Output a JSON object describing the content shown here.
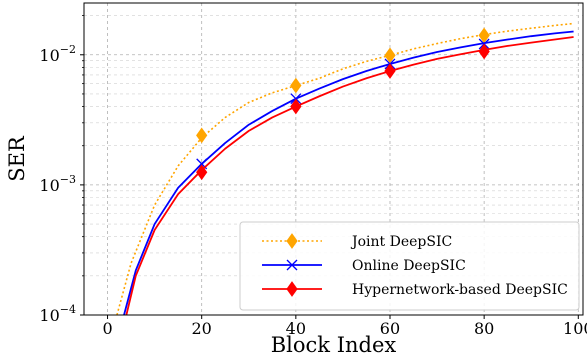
{
  "chart_data": {
    "type": "line",
    "title": "",
    "xlabel": "Block Index",
    "ylabel": "SER",
    "xlim": [
      -5,
      101
    ],
    "ylim": [
      0.0001,
      0.025
    ],
    "yscale": "log",
    "grid": true,
    "legend_position": "bottom-right",
    "x_ticks": [
      0,
      20,
      40,
      60,
      80,
      100
    ],
    "x_tick_labels": [
      "0",
      "20",
      "40",
      "60",
      "80",
      "100"
    ],
    "y_ticks": [
      0.0001,
      0.001,
      0.01
    ],
    "y_tick_labels": [
      {
        "base": "10",
        "exp": "−4"
      },
      {
        "base": "10",
        "exp": "−3"
      },
      {
        "base": "10",
        "exp": "−2"
      }
    ],
    "series": [
      {
        "name": "Joint DeepSIC",
        "color": "#FFA500",
        "line_style": "dotted",
        "marker": "diamond",
        "x": [
          2,
          5,
          10,
          15,
          20,
          25,
          30,
          35,
          40,
          45,
          50,
          55,
          60,
          65,
          70,
          75,
          80,
          85,
          90,
          95,
          99
        ],
        "y": [
          0.0001,
          0.00025,
          0.0007,
          0.0014,
          0.0023,
          0.0033,
          0.0043,
          0.0051,
          0.0058,
          0.0066,
          0.0078,
          0.0089,
          0.0099,
          0.0111,
          0.0122,
          0.0133,
          0.0143,
          0.0152,
          0.016,
          0.0168,
          0.0174
        ],
        "marker_x": [
          20,
          40,
          60,
          80
        ],
        "marker_y": [
          0.0024,
          0.0058,
          0.0099,
          0.0141
        ]
      },
      {
        "name": "Online DeepSIC",
        "color": "#0000FF",
        "line_style": "solid",
        "marker": "x",
        "x": [
          3.5,
          6,
          10,
          15,
          20,
          25,
          30,
          35,
          40,
          45,
          50,
          55,
          60,
          65,
          70,
          75,
          80,
          85,
          90,
          95,
          99
        ],
        "y": [
          0.0001,
          0.00022,
          0.0005,
          0.00095,
          0.00145,
          0.0021,
          0.0029,
          0.0037,
          0.0046,
          0.0055,
          0.0065,
          0.0075,
          0.0085,
          0.0095,
          0.0105,
          0.0114,
          0.0123,
          0.0131,
          0.0139,
          0.0146,
          0.0151
        ],
        "marker_x": [
          20,
          40,
          60,
          80
        ],
        "marker_y": [
          0.00145,
          0.0046,
          0.0085,
          0.0121
        ]
      },
      {
        "name": "Hypernetwork-based DeepSIC",
        "color": "#FF0000",
        "line_style": "solid",
        "marker": "diamond",
        "x": [
          4,
          6,
          10,
          15,
          20,
          25,
          30,
          35,
          40,
          45,
          50,
          55,
          60,
          65,
          70,
          75,
          80,
          85,
          90,
          95,
          99
        ],
        "y": [
          0.0001,
          0.0002,
          0.00045,
          0.00085,
          0.0013,
          0.0019,
          0.0026,
          0.0033,
          0.004,
          0.0048,
          0.0057,
          0.0066,
          0.0075,
          0.0084,
          0.0093,
          0.0101,
          0.0109,
          0.0117,
          0.0124,
          0.0131,
          0.0137
        ],
        "marker_x": [
          20,
          40,
          60,
          80
        ],
        "marker_y": [
          0.00125,
          0.004,
          0.0075,
          0.0106
        ]
      }
    ]
  }
}
